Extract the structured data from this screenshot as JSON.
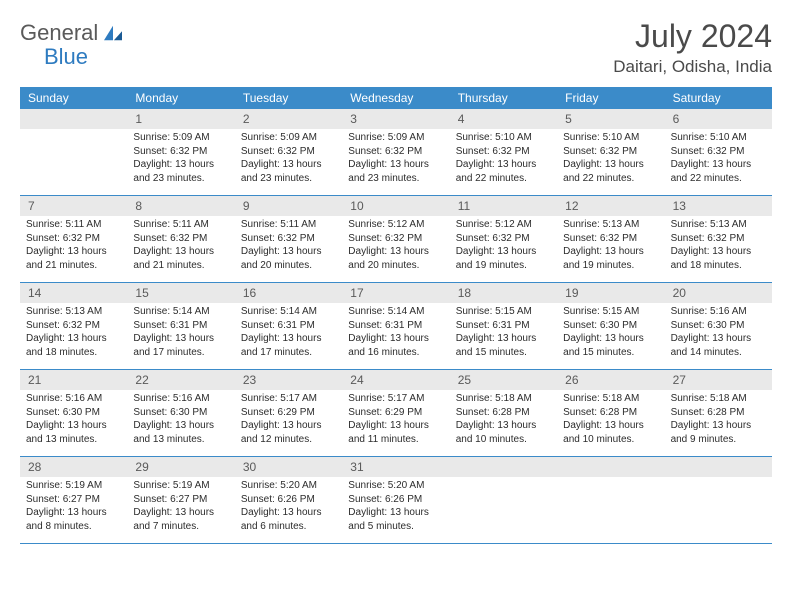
{
  "logo": {
    "text1": "General",
    "text2": "Blue"
  },
  "title": "July 2024",
  "location": "Daitari, Odisha, India",
  "colors": {
    "header_bg": "#3b8bc9",
    "header_text": "#ffffff",
    "daynum_bg": "#e9e9e9",
    "daynum_text": "#5a5a5a",
    "border": "#3b8bc9",
    "body_text": "#2c2c2c"
  },
  "weekdays": [
    "Sunday",
    "Monday",
    "Tuesday",
    "Wednesday",
    "Thursday",
    "Friday",
    "Saturday"
  ],
  "weeks": [
    [
      {
        "n": "",
        "sr": "",
        "ss": "",
        "dl": ""
      },
      {
        "n": "1",
        "sr": "Sunrise: 5:09 AM",
        "ss": "Sunset: 6:32 PM",
        "dl": "Daylight: 13 hours and 23 minutes."
      },
      {
        "n": "2",
        "sr": "Sunrise: 5:09 AM",
        "ss": "Sunset: 6:32 PM",
        "dl": "Daylight: 13 hours and 23 minutes."
      },
      {
        "n": "3",
        "sr": "Sunrise: 5:09 AM",
        "ss": "Sunset: 6:32 PM",
        "dl": "Daylight: 13 hours and 23 minutes."
      },
      {
        "n": "4",
        "sr": "Sunrise: 5:10 AM",
        "ss": "Sunset: 6:32 PM",
        "dl": "Daylight: 13 hours and 22 minutes."
      },
      {
        "n": "5",
        "sr": "Sunrise: 5:10 AM",
        "ss": "Sunset: 6:32 PM",
        "dl": "Daylight: 13 hours and 22 minutes."
      },
      {
        "n": "6",
        "sr": "Sunrise: 5:10 AM",
        "ss": "Sunset: 6:32 PM",
        "dl": "Daylight: 13 hours and 22 minutes."
      }
    ],
    [
      {
        "n": "7",
        "sr": "Sunrise: 5:11 AM",
        "ss": "Sunset: 6:32 PM",
        "dl": "Daylight: 13 hours and 21 minutes."
      },
      {
        "n": "8",
        "sr": "Sunrise: 5:11 AM",
        "ss": "Sunset: 6:32 PM",
        "dl": "Daylight: 13 hours and 21 minutes."
      },
      {
        "n": "9",
        "sr": "Sunrise: 5:11 AM",
        "ss": "Sunset: 6:32 PM",
        "dl": "Daylight: 13 hours and 20 minutes."
      },
      {
        "n": "10",
        "sr": "Sunrise: 5:12 AM",
        "ss": "Sunset: 6:32 PM",
        "dl": "Daylight: 13 hours and 20 minutes."
      },
      {
        "n": "11",
        "sr": "Sunrise: 5:12 AM",
        "ss": "Sunset: 6:32 PM",
        "dl": "Daylight: 13 hours and 19 minutes."
      },
      {
        "n": "12",
        "sr": "Sunrise: 5:13 AM",
        "ss": "Sunset: 6:32 PM",
        "dl": "Daylight: 13 hours and 19 minutes."
      },
      {
        "n": "13",
        "sr": "Sunrise: 5:13 AM",
        "ss": "Sunset: 6:32 PM",
        "dl": "Daylight: 13 hours and 18 minutes."
      }
    ],
    [
      {
        "n": "14",
        "sr": "Sunrise: 5:13 AM",
        "ss": "Sunset: 6:32 PM",
        "dl": "Daylight: 13 hours and 18 minutes."
      },
      {
        "n": "15",
        "sr": "Sunrise: 5:14 AM",
        "ss": "Sunset: 6:31 PM",
        "dl": "Daylight: 13 hours and 17 minutes."
      },
      {
        "n": "16",
        "sr": "Sunrise: 5:14 AM",
        "ss": "Sunset: 6:31 PM",
        "dl": "Daylight: 13 hours and 17 minutes."
      },
      {
        "n": "17",
        "sr": "Sunrise: 5:14 AM",
        "ss": "Sunset: 6:31 PM",
        "dl": "Daylight: 13 hours and 16 minutes."
      },
      {
        "n": "18",
        "sr": "Sunrise: 5:15 AM",
        "ss": "Sunset: 6:31 PM",
        "dl": "Daylight: 13 hours and 15 minutes."
      },
      {
        "n": "19",
        "sr": "Sunrise: 5:15 AM",
        "ss": "Sunset: 6:30 PM",
        "dl": "Daylight: 13 hours and 15 minutes."
      },
      {
        "n": "20",
        "sr": "Sunrise: 5:16 AM",
        "ss": "Sunset: 6:30 PM",
        "dl": "Daylight: 13 hours and 14 minutes."
      }
    ],
    [
      {
        "n": "21",
        "sr": "Sunrise: 5:16 AM",
        "ss": "Sunset: 6:30 PM",
        "dl": "Daylight: 13 hours and 13 minutes."
      },
      {
        "n": "22",
        "sr": "Sunrise: 5:16 AM",
        "ss": "Sunset: 6:30 PM",
        "dl": "Daylight: 13 hours and 13 minutes."
      },
      {
        "n": "23",
        "sr": "Sunrise: 5:17 AM",
        "ss": "Sunset: 6:29 PM",
        "dl": "Daylight: 13 hours and 12 minutes."
      },
      {
        "n": "24",
        "sr": "Sunrise: 5:17 AM",
        "ss": "Sunset: 6:29 PM",
        "dl": "Daylight: 13 hours and 11 minutes."
      },
      {
        "n": "25",
        "sr": "Sunrise: 5:18 AM",
        "ss": "Sunset: 6:28 PM",
        "dl": "Daylight: 13 hours and 10 minutes."
      },
      {
        "n": "26",
        "sr": "Sunrise: 5:18 AM",
        "ss": "Sunset: 6:28 PM",
        "dl": "Daylight: 13 hours and 10 minutes."
      },
      {
        "n": "27",
        "sr": "Sunrise: 5:18 AM",
        "ss": "Sunset: 6:28 PM",
        "dl": "Daylight: 13 hours and 9 minutes."
      }
    ],
    [
      {
        "n": "28",
        "sr": "Sunrise: 5:19 AM",
        "ss": "Sunset: 6:27 PM",
        "dl": "Daylight: 13 hours and 8 minutes."
      },
      {
        "n": "29",
        "sr": "Sunrise: 5:19 AM",
        "ss": "Sunset: 6:27 PM",
        "dl": "Daylight: 13 hours and 7 minutes."
      },
      {
        "n": "30",
        "sr": "Sunrise: 5:20 AM",
        "ss": "Sunset: 6:26 PM",
        "dl": "Daylight: 13 hours and 6 minutes."
      },
      {
        "n": "31",
        "sr": "Sunrise: 5:20 AM",
        "ss": "Sunset: 6:26 PM",
        "dl": "Daylight: 13 hours and 5 minutes."
      },
      {
        "n": "",
        "sr": "",
        "ss": "",
        "dl": ""
      },
      {
        "n": "",
        "sr": "",
        "ss": "",
        "dl": ""
      },
      {
        "n": "",
        "sr": "",
        "ss": "",
        "dl": ""
      }
    ]
  ]
}
